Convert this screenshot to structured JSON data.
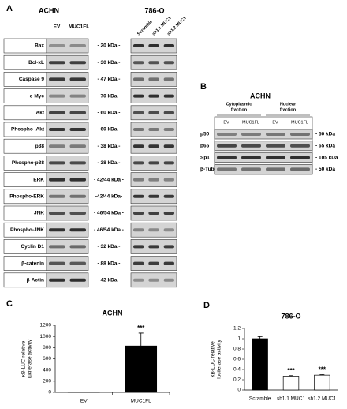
{
  "panel_a": {
    "label": "A",
    "left_title": "ACHN",
    "left_lanes": [
      "EV",
      "MUC1FL"
    ],
    "right_title": "786-O",
    "right_lanes": [
      "Scramble",
      "sh1.1 MUC1",
      "sh1.2 MUC1"
    ],
    "rows": [
      {
        "protein": "Bax",
        "size": "- 20 kDa -"
      },
      {
        "protein": "Bcl-xL",
        "size": "- 30 kDa -"
      },
      {
        "protein": "Caspase 9",
        "size": "- 47 kDa -"
      },
      {
        "protein": "c-Myc",
        "size": "- 70 kDa -"
      },
      {
        "protein": "Akt",
        "size": "- 60 kDa -"
      },
      {
        "protein": "Phospho- Akt",
        "size": "- 60 kDa -"
      },
      {
        "protein": "p38",
        "size": "- 38 kDa -"
      },
      {
        "protein": "Phospho-p38",
        "size": "- 38 kDa -"
      },
      {
        "protein": "ERK",
        "size": "- 42/44 kDa -"
      },
      {
        "protein": "Phospho-ERK",
        "size": "-42/44 kDa-"
      },
      {
        "protein": "JNK",
        "size": "- 46/54 kDa -"
      },
      {
        "protein": "Phospho-JNK",
        "size": "- 46/54 kDa -"
      },
      {
        "protein": "Cyclin D1",
        "size": "- 32 kDa -"
      },
      {
        "protein": "β-catenin",
        "size": "- 88 kDa -"
      },
      {
        "protein": "β-Actin",
        "size": "- 42 kDa -"
      }
    ]
  },
  "panel_b": {
    "label": "B",
    "title": "ACHN",
    "fractions": [
      [
        "Cytoplasmic",
        "fraction"
      ],
      [
        "Nuclear",
        "fraction"
      ]
    ],
    "lanes": [
      "EV",
      "MUC1FL",
      "EV",
      "MUC1FL"
    ],
    "rows": [
      {
        "protein": "p50",
        "size": "- 50 kDa"
      },
      {
        "protein": "p65",
        "size": "- 65 kDa"
      },
      {
        "protein": "Sp1",
        "size": "- 105 kDa"
      },
      {
        "protein": "β-Tubulin",
        "size": "- 50 kDa"
      }
    ]
  },
  "chart_data": [
    {
      "type": "bar",
      "panel_label": "C",
      "title": "ACHN",
      "ylabel": [
        "κB-LUC relative",
        "luciferase activity"
      ],
      "categories": [
        "EV",
        "MUC1FL"
      ],
      "series": [
        {
          "colors": [
            "#000000",
            "#000000"
          ],
          "values": [
            5,
            830
          ],
          "errors": [
            null,
            230
          ],
          "value_labels": [
            null,
            "***"
          ]
        }
      ],
      "ylim": [
        0,
        1200
      ],
      "yticks": [
        0,
        200,
        400,
        600,
        800,
        1000,
        1200
      ],
      "grid": false
    },
    {
      "type": "bar",
      "panel_label": "D",
      "title": "786-O",
      "ylabel": [
        "κB-LUC relative",
        "luciferase activity"
      ],
      "categories": [
        "Scramble",
        "sh1.1 MUC1",
        "sh1.2 MUC1"
      ],
      "series": [
        {
          "colors": [
            "#000000",
            "#ffffff",
            "#ffffff"
          ],
          "values": [
            1.0,
            0.27,
            0.29
          ],
          "errors": [
            0.04,
            0.01,
            0.01
          ],
          "value_labels": [
            null,
            "***",
            "***"
          ]
        }
      ],
      "ylim": [
        0,
        1.2
      ],
      "yticks": [
        0,
        0.2,
        0.4,
        0.6,
        0.8,
        1,
        1.2
      ],
      "grid": false
    }
  ]
}
